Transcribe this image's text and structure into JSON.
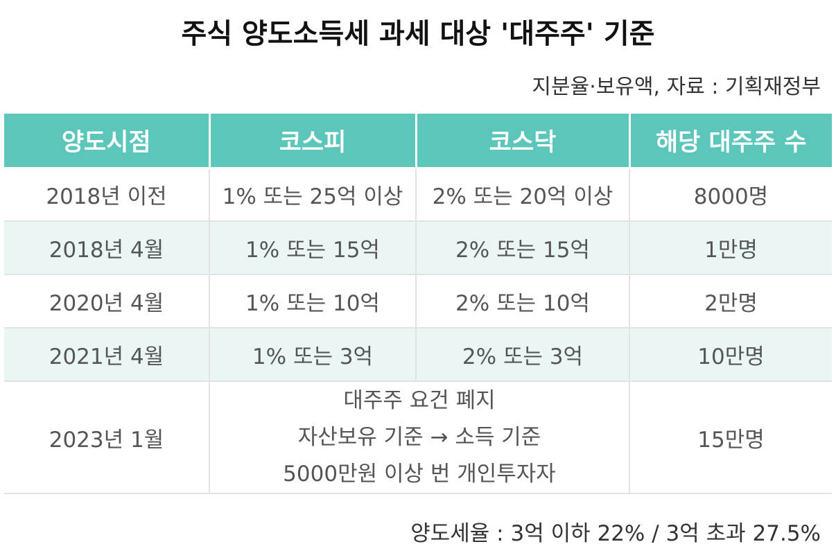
{
  "title": "주식 양도소득세 과세 대상 '대주주' 기준",
  "subtitle": "지분율·보유액, 자료 : 기획재정부",
  "table": {
    "headers": [
      "양도시점",
      "코스피",
      "코스닥",
      "해당 대주주 수"
    ],
    "rows": [
      [
        "2018년 이전",
        "1% 또는 25억 이상",
        "2% 또는 20억 이상",
        "8000명"
      ],
      [
        "2018년 4월",
        "1% 또는 15억",
        "2% 또는 15억",
        "1만명"
      ],
      [
        "2020년 4월",
        "1% 또는 10억",
        "2% 또는 10억",
        "2만명"
      ],
      [
        "2021년 4월",
        "1% 또는 3억",
        "2% 또는 3억",
        "10만명"
      ]
    ],
    "last_row": {
      "period": "2023년 1월",
      "merged_lines": [
        "대주주 요건 폐지",
        "자산보유 기준 → 소득 기준",
        "5000만원 이상 번 개인투자자"
      ],
      "count": "15만명"
    }
  },
  "footer": "양도세율 : 3억 이하 22% / 3억 초과 27.5%",
  "colors": {
    "header_bg": "#5bc6b9",
    "alt_row_bg": "#eaf6f5",
    "border": "#e2e2e2"
  }
}
